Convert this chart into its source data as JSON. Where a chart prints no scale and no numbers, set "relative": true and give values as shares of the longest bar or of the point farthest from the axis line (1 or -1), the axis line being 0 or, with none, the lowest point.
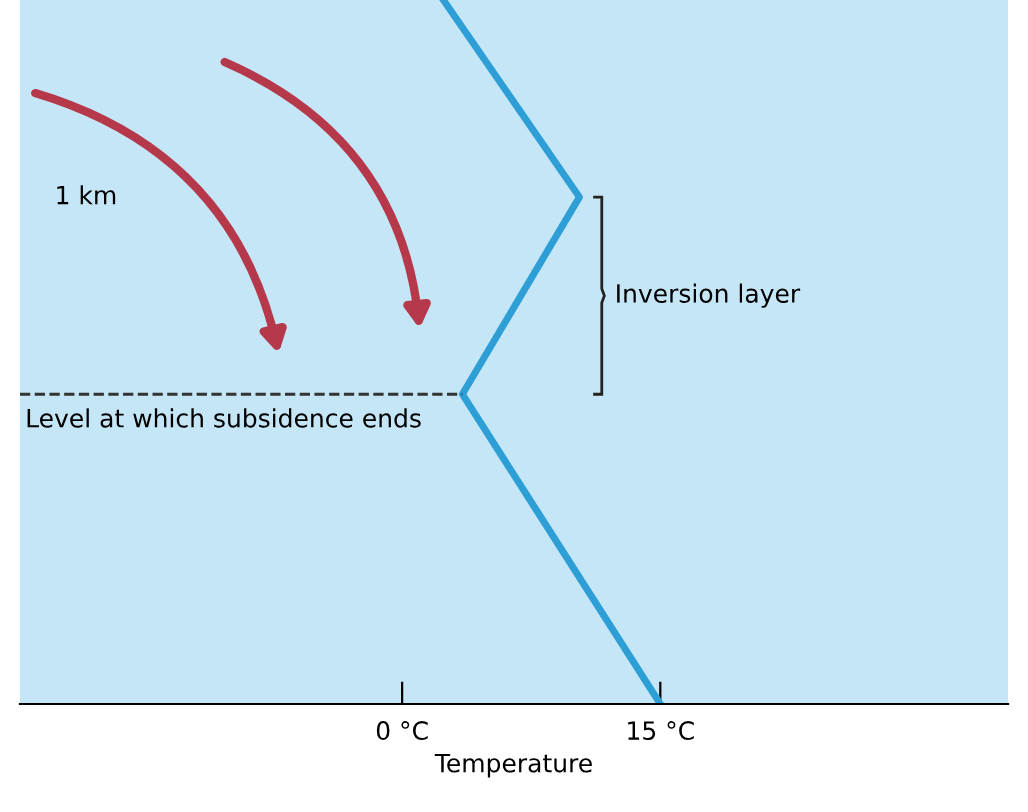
{
  "chart_data": {
    "type": "line",
    "relative": true,
    "xlabel": "Temperature",
    "x": [
      15,
      3.5,
      10.3,
      2.4
    ],
    "series": [
      {
        "color": "#2e9fd6",
        "values": [
          0,
          0.44,
          0.72,
          1
        ]
      }
    ],
    "xlim": [
      -22.2,
      35.2
    ],
    "xticks": [
      {
        "value": 0,
        "label": "0 °C"
      },
      {
        "value": 15,
        "label": "15 °C"
      }
    ],
    "ref_lines": [
      {
        "axis": "y",
        "value": 0.44,
        "label": "Level at which subsidence ends",
        "line_style": "dashed",
        "color": "#333333"
      }
    ],
    "annotations": [
      "1 km",
      "Inversion layer"
    ],
    "grid": false,
    "legend": false,
    "marker": "none",
    "line_style": "solid"
  }
}
